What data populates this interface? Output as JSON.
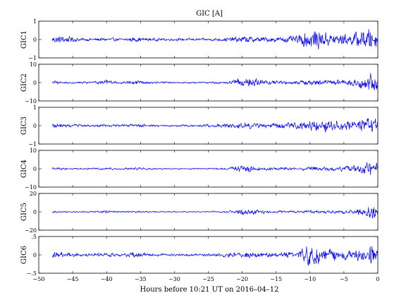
{
  "chart_data": {
    "type": "line",
    "title": "GIC [A]",
    "xlabel": "Hours before  10:21 UT on 2016–04–12",
    "xlim": [
      -50,
      0
    ],
    "xticks": [
      -50,
      -45,
      -40,
      -35,
      -30,
      -25,
      -20,
      -15,
      -10,
      -5,
      0
    ],
    "data_x_start": -48,
    "color": "#0000ff",
    "grid": false,
    "panels": [
      {
        "name": "GIC1",
        "ylim": [
          -1,
          1
        ],
        "yticks": [
          -1,
          0,
          1
        ],
        "x": [
          -48,
          -46,
          -44,
          -42,
          -40,
          -38,
          -36,
          -34,
          -32,
          -30,
          -28,
          -26,
          -24,
          -22,
          -20,
          -18,
          -16,
          -14,
          -12,
          -10,
          -8,
          -6,
          -4,
          -2,
          -1,
          0
        ],
        "peak_abs": [
          0.3,
          0.25,
          0.12,
          0.1,
          0.15,
          0.1,
          0.18,
          0.12,
          0.1,
          0.1,
          0.1,
          0.1,
          0.12,
          0.15,
          0.25,
          0.2,
          0.18,
          0.22,
          0.25,
          0.8,
          0.55,
          0.45,
          0.4,
          0.75,
          0.8,
          0.5
        ]
      },
      {
        "name": "GIC2",
        "ylim": [
          -10,
          10
        ],
        "yticks": [
          -10,
          0,
          10
        ],
        "x": [
          -48,
          -46,
          -44,
          -42,
          -40,
          -38,
          -36,
          -34,
          -32,
          -30,
          -28,
          -26,
          -24,
          -22,
          -20,
          -18,
          -16,
          -14,
          -12,
          -10,
          -8,
          -6,
          -4,
          -2,
          -1,
          0
        ],
        "peak_abs": [
          1.5,
          1.0,
          0.8,
          0.8,
          2.0,
          0.8,
          1.5,
          1.0,
          0.8,
          0.6,
          0.6,
          0.6,
          0.8,
          1.0,
          3.5,
          2.5,
          1.5,
          1.5,
          1.2,
          2.0,
          2.0,
          2.0,
          2.5,
          4.0,
          8.0,
          5.0
        ]
      },
      {
        "name": "GIC3",
        "ylim": [
          -1,
          1
        ],
        "yticks": [
          -1,
          0,
          1
        ],
        "x": [
          -48,
          -46,
          -44,
          -42,
          -40,
          -38,
          -36,
          -34,
          -32,
          -30,
          -28,
          -26,
          -24,
          -22,
          -20,
          -18,
          -16,
          -14,
          -12,
          -10,
          -8,
          -6,
          -4,
          -2,
          -1,
          0
        ],
        "peak_abs": [
          0.2,
          0.15,
          0.1,
          0.08,
          0.12,
          0.1,
          0.15,
          0.1,
          0.08,
          0.08,
          0.08,
          0.1,
          0.12,
          0.15,
          0.25,
          0.2,
          0.15,
          0.22,
          0.25,
          0.4,
          0.45,
          0.4,
          0.35,
          0.5,
          0.55,
          0.45
        ]
      },
      {
        "name": "GIC4",
        "ylim": [
          -10,
          10
        ],
        "yticks": [
          -10,
          0,
          10
        ],
        "x": [
          -48,
          -46,
          -44,
          -42,
          -40,
          -38,
          -36,
          -34,
          -32,
          -30,
          -28,
          -26,
          -24,
          -22,
          -20,
          -18,
          -16,
          -14,
          -12,
          -10,
          -8,
          -6,
          -4,
          -2,
          -1,
          0
        ],
        "peak_abs": [
          1.0,
          0.8,
          0.6,
          0.6,
          1.2,
          0.6,
          1.0,
          0.8,
          0.6,
          0.5,
          0.5,
          0.5,
          0.6,
          0.8,
          3.0,
          2.0,
          1.2,
          1.2,
          1.0,
          1.5,
          1.5,
          1.5,
          2.0,
          3.5,
          5.5,
          3.5
        ]
      },
      {
        "name": "GIC5",
        "ylim": [
          -20,
          20
        ],
        "yticks": [
          -20,
          0,
          20
        ],
        "x": [
          -48,
          -46,
          -44,
          -42,
          -40,
          -38,
          -36,
          -34,
          -32,
          -30,
          -28,
          -26,
          -24,
          -22,
          -20,
          -18,
          -16,
          -14,
          -12,
          -10,
          -8,
          -6,
          -4,
          -2,
          -1,
          0
        ],
        "peak_abs": [
          1.5,
          1.2,
          1.0,
          1.0,
          2.0,
          1.0,
          1.5,
          1.0,
          1.0,
          0.8,
          0.8,
          0.8,
          1.0,
          1.5,
          5.0,
          3.5,
          2.0,
          2.0,
          1.5,
          2.5,
          2.5,
          2.5,
          3.0,
          5.0,
          12.0,
          7.0
        ]
      },
      {
        "name": "GIC6",
        "ylim": [
          -0.5,
          0.5
        ],
        "yticks": [
          -0.5,
          0,
          0.5
        ],
        "x": [
          -48,
          -46,
          -44,
          -42,
          -40,
          -38,
          -36,
          -34,
          -32,
          -30,
          -28,
          -26,
          -24,
          -22,
          -20,
          -18,
          -16,
          -14,
          -12,
          -10,
          -8,
          -6,
          -4,
          -2,
          -1,
          0
        ],
        "peak_abs": [
          0.12,
          0.1,
          0.06,
          0.05,
          0.08,
          0.05,
          0.1,
          0.06,
          0.05,
          0.05,
          0.05,
          0.05,
          0.06,
          0.08,
          0.12,
          0.1,
          0.08,
          0.1,
          0.12,
          0.4,
          0.25,
          0.18,
          0.16,
          0.25,
          0.35,
          0.2
        ]
      }
    ]
  }
}
